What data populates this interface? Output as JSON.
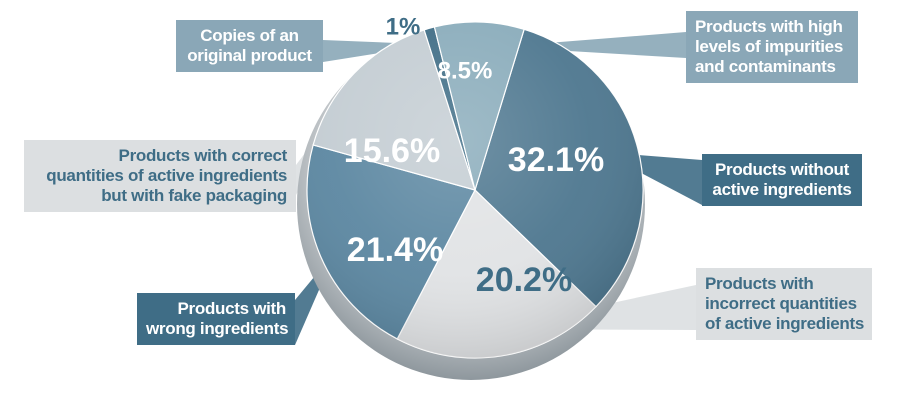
{
  "chart_data": {
    "type": "pie",
    "title": "",
    "slices": [
      {
        "label": "Products without active ingredients",
        "value": 32.1,
        "display": "32.1%",
        "color": "#4f7890"
      },
      {
        "label": "Products with incorrect quantities of active ingredients",
        "value": 20.2,
        "display": "20.2%",
        "color": "#e1e3e5"
      },
      {
        "label": "Products with wrong ingredients",
        "value": 21.4,
        "display": "21.4%",
        "color": "#5d88a2"
      },
      {
        "label": "Products with correct quantities of active ingredients but with fake packaging",
        "value": 15.6,
        "display": "15.6%",
        "color": "#c4cdd3"
      },
      {
        "label": "Copies of an original product",
        "value": 1,
        "display": "1%",
        "color": "#3f6d86"
      },
      {
        "label": "Products with high levels of impurities and contaminants",
        "value": 8.5,
        "display": "8.5%",
        "color": "#8aacbb"
      }
    ]
  },
  "callouts": {
    "copies": [
      "Copies of an",
      "original product"
    ],
    "impurities": [
      "Products with high",
      "levels of impurities",
      "and contaminants"
    ],
    "correct_fake": [
      "Products with correct",
      "quantities of active ingredients",
      "but with fake packaging"
    ],
    "without_active": [
      "Products without",
      "active ingredients"
    ],
    "wrong": [
      "Products with",
      "wrong ingredients"
    ],
    "incorrect": [
      "Products with",
      "incorrect quantities",
      "of active ingredients"
    ]
  },
  "colors": {
    "dark_label": "#3f6d86",
    "medium_label": "#8aa7b7",
    "light_label": "#dcdfe1",
    "pie_shadow": "#7d8a92"
  }
}
